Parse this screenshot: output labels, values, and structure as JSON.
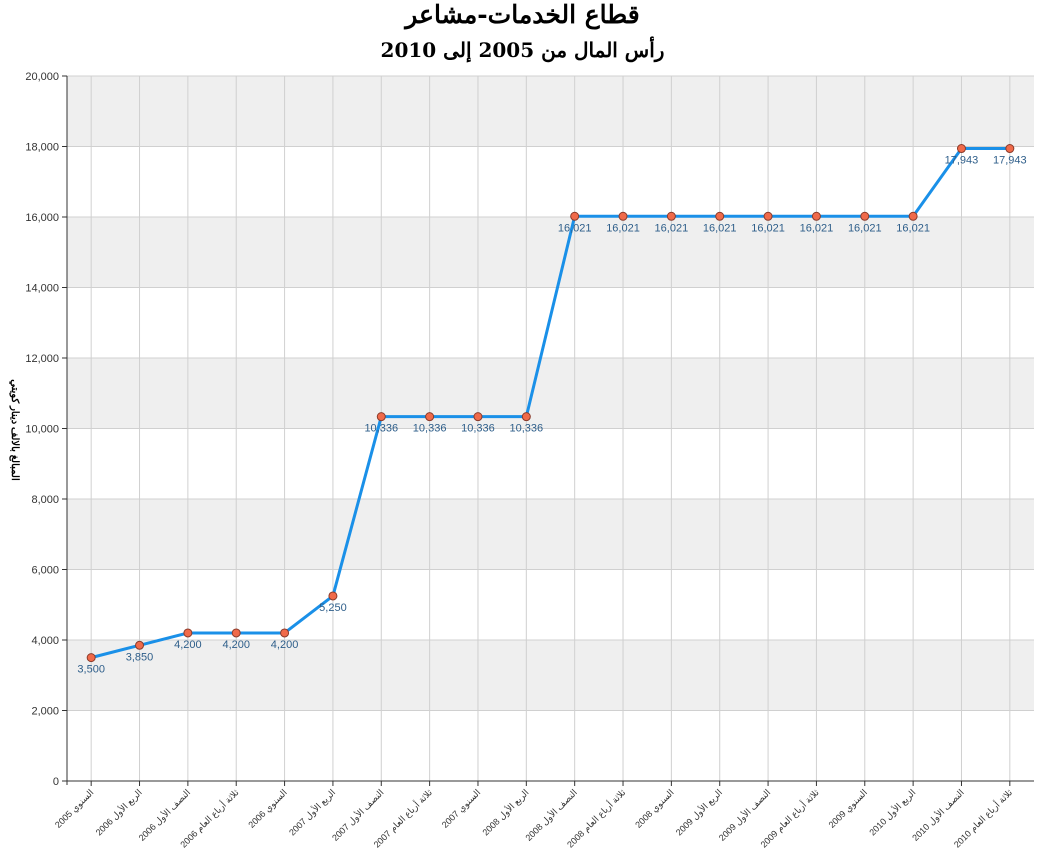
{
  "chart_data": {
    "type": "line",
    "title": "قطاع الخدمات-مشاعر",
    "subtitle": "رأس المال من 2005 إلى 2010",
    "ylabel": "المبالغ بالالف دينار كويتي",
    "xlabel": "",
    "ylim": [
      0,
      20000
    ],
    "yticks": [
      0,
      2000,
      4000,
      6000,
      8000,
      10000,
      12000,
      14000,
      16000,
      18000,
      20000
    ],
    "ytick_labels": [
      "0",
      "2,000",
      "4,000",
      "6,000",
      "8,000",
      "10,000",
      "12,000",
      "14,000",
      "16,000",
      "18,000",
      "20,000"
    ],
    "grid": "vertical and horizontal, alternating light-gray bands",
    "categories": [
      "السنوي 2005",
      "الربع الأول 2006",
      "النصف الأول 2006",
      "ثلاثة أرباع العام 2006",
      "السنوي 2006",
      "الربع الأول 2007",
      "النصف الأول 2007",
      "ثلاثة أرباع العام 2007",
      "السنوي 2007",
      "الربع الأول 2008",
      "النصف الأول 2008",
      "ثلاثة أرباع العام 2008",
      "السنوي 2008",
      "الربع الأول 2009",
      "النصف الأول 2009",
      "ثلاثة أرباع العام 2009",
      "السنوي 2009",
      "الربع الأول 2010",
      "النصف الأول 2010",
      "ثلاثة أرباع العام 2010"
    ],
    "values": [
      3500,
      3850,
      4200,
      4200,
      4200,
      5250,
      10336,
      10336,
      10336,
      10336,
      16021,
      16021,
      16021,
      16021,
      16021,
      16021,
      16021,
      16021,
      17943,
      17943
    ],
    "value_labels": [
      "3,500",
      "3,850",
      "4,200",
      "4,200",
      "4,200",
      "5,250",
      "10,336",
      "10,336",
      "10,336",
      "10,336",
      "16,021",
      "16,021",
      "16,021",
      "16,021",
      "16,021",
      "16,021",
      "16,021",
      "16,021",
      "17,943",
      "17,943"
    ],
    "colors": {
      "line": "#1a90e8",
      "marker_fill": "#f06a4a",
      "marker_stroke": "#8a3a2a",
      "band": "#efefef",
      "grid": "#d0d0d0",
      "label": "#2e5e8a"
    }
  }
}
